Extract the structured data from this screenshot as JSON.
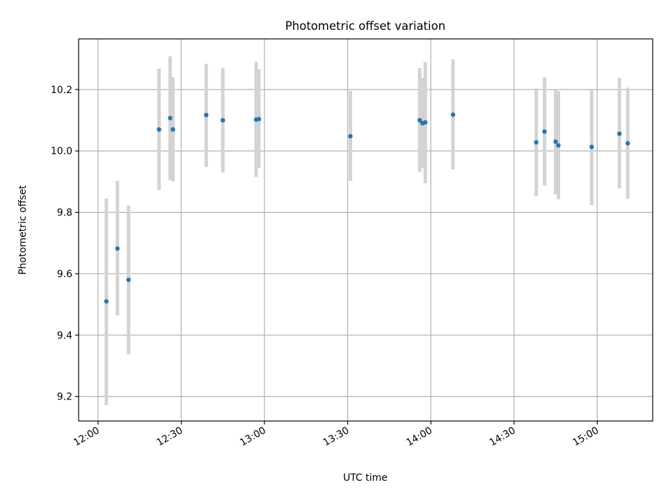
{
  "chart_data": {
    "type": "scatter",
    "title": "Photometric offset variation",
    "xlabel": "UTC time",
    "ylabel": "Photometric offset",
    "x_ticks": [
      "12:00",
      "12:30",
      "13:00",
      "13:30",
      "14:00",
      "14:30",
      "15:00"
    ],
    "y_ticks": [
      "9.2",
      "9.4",
      "9.6",
      "9.8",
      "10.0",
      "10.2"
    ],
    "xlim": [
      "11:53",
      "15:20"
    ],
    "ylim": [
      9.12,
      10.365
    ],
    "grid": true,
    "colors": {
      "point": "#1f77b4",
      "errorbar": "#d3d3d3",
      "grid": "#b0b0b0",
      "axes": "#000000"
    },
    "series": [
      {
        "points": [
          {
            "x": "12:03",
            "y": 9.51,
            "ylow": 9.172,
            "yhigh": 9.845
          },
          {
            "x": "12:07",
            "y": 9.682,
            "ylow": 9.464,
            "yhigh": 9.902
          },
          {
            "x": "12:11",
            "y": 9.58,
            "ylow": 9.337,
            "yhigh": 9.822
          },
          {
            "x": "12:22",
            "y": 10.07,
            "ylow": 9.873,
            "yhigh": 10.268
          },
          {
            "x": "12:26",
            "y": 10.107,
            "ylow": 9.905,
            "yhigh": 10.308
          },
          {
            "x": "12:27",
            "y": 10.07,
            "ylow": 9.9,
            "yhigh": 10.24
          },
          {
            "x": "12:39",
            "y": 10.117,
            "ylow": 9.948,
            "yhigh": 10.284
          },
          {
            "x": "12:45",
            "y": 10.1,
            "ylow": 9.93,
            "yhigh": 10.27
          },
          {
            "x": "12:57",
            "y": 10.102,
            "ylow": 9.915,
            "yhigh": 10.29
          },
          {
            "x": "12:58",
            "y": 10.104,
            "ylow": 9.944,
            "yhigh": 10.266
          },
          {
            "x": "13:31",
            "y": 10.048,
            "ylow": 9.902,
            "yhigh": 10.195
          },
          {
            "x": "13:56",
            "y": 10.1,
            "ylow": 9.932,
            "yhigh": 10.27
          },
          {
            "x": "13:57",
            "y": 10.09,
            "ylow": 9.945,
            "yhigh": 10.238
          },
          {
            "x": "13:58",
            "y": 10.093,
            "ylow": 9.895,
            "yhigh": 10.29
          },
          {
            "x": "14:08",
            "y": 10.118,
            "ylow": 9.94,
            "yhigh": 10.298
          },
          {
            "x": "14:38",
            "y": 10.028,
            "ylow": 9.852,
            "yhigh": 10.204
          },
          {
            "x": "14:41",
            "y": 10.063,
            "ylow": 9.887,
            "yhigh": 10.24
          },
          {
            "x": "14:45",
            "y": 10.03,
            "ylow": 9.858,
            "yhigh": 10.2
          },
          {
            "x": "14:46",
            "y": 10.018,
            "ylow": 9.842,
            "yhigh": 10.195
          },
          {
            "x": "14:58",
            "y": 10.013,
            "ylow": 9.824,
            "yhigh": 10.2
          },
          {
            "x": "15:08",
            "y": 10.056,
            "ylow": 9.878,
            "yhigh": 10.238
          },
          {
            "x": "15:11",
            "y": 10.025,
            "ylow": 9.844,
            "yhigh": 10.206
          }
        ]
      }
    ]
  }
}
